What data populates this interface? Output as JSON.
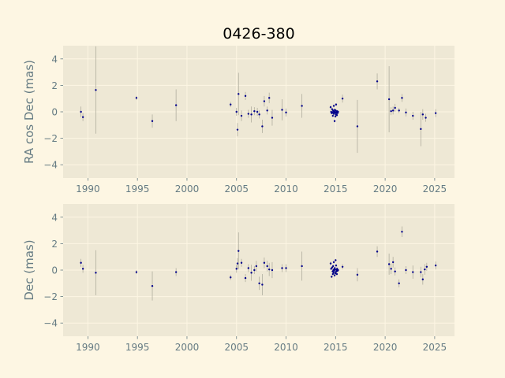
{
  "chart_data": {
    "type": "scatter",
    "title": "0426-380",
    "colors": {
      "figure_background": "#fdf6e3",
      "plot_background": "#eee8d5",
      "grid": "#fdf6e3",
      "marker": "#00008b",
      "errorbar": "#b0ad9e",
      "text": "#657b83"
    },
    "grid": true,
    "xlim": [
      1987.5,
      2027.0
    ],
    "xticks": [
      1990,
      1995,
      2000,
      2005,
      2010,
      2015,
      2020,
      2025
    ],
    "panels": [
      {
        "ylabel": "RA cos Dec (mas)",
        "ylim": [
          -5,
          5
        ],
        "yticks": [
          -4,
          -2,
          0,
          2,
          4
        ],
        "points": [
          {
            "x": 1989.3,
            "y": 0.0,
            "err": 0.4
          },
          {
            "x": 1989.5,
            "y": -0.4,
            "err": 0.3
          },
          {
            "x": 1990.8,
            "y": 1.65,
            "err": 3.3
          },
          {
            "x": 1994.9,
            "y": 1.05,
            "err": 0.15
          },
          {
            "x": 1996.5,
            "y": -0.7,
            "err": 0.5
          },
          {
            "x": 1998.9,
            "y": 0.5,
            "err": 1.2
          },
          {
            "x": 2004.4,
            "y": 0.55,
            "err": 0.2
          },
          {
            "x": 2005.0,
            "y": 0.0,
            "err": 0.3
          },
          {
            "x": 2005.1,
            "y": -1.35,
            "err": 0.5
          },
          {
            "x": 2005.2,
            "y": 1.35,
            "err": 1.6
          },
          {
            "x": 2005.5,
            "y": -0.3,
            "err": 0.4
          },
          {
            "x": 2005.9,
            "y": 1.2,
            "err": 0.3
          },
          {
            "x": 2006.2,
            "y": -0.15,
            "err": 0.3
          },
          {
            "x": 2006.5,
            "y": -0.2,
            "err": 0.6
          },
          {
            "x": 2006.8,
            "y": 0.05,
            "err": 0.3
          },
          {
            "x": 2007.1,
            "y": 0.0,
            "err": 0.3
          },
          {
            "x": 2007.3,
            "y": -0.2,
            "err": 0.3
          },
          {
            "x": 2007.6,
            "y": -1.1,
            "err": 0.5
          },
          {
            "x": 2007.8,
            "y": 0.8,
            "err": 0.4
          },
          {
            "x": 2008.1,
            "y": 0.1,
            "err": 0.3
          },
          {
            "x": 2008.3,
            "y": 1.05,
            "err": 0.4
          },
          {
            "x": 2008.6,
            "y": -0.45,
            "err": 0.6
          },
          {
            "x": 2009.6,
            "y": 0.15,
            "err": 0.8
          },
          {
            "x": 2010.0,
            "y": -0.05,
            "err": 0.3
          },
          {
            "x": 2011.6,
            "y": 0.45,
            "err": 0.9
          },
          {
            "x": 2014.5,
            "y": 0.35,
            "err": 0.15
          },
          {
            "x": 2014.55,
            "y": 0.0,
            "err": 0.1
          },
          {
            "x": 2014.6,
            "y": -0.1,
            "err": 0.1
          },
          {
            "x": 2014.65,
            "y": 0.2,
            "err": 0.1
          },
          {
            "x": 2014.7,
            "y": -0.05,
            "err": 0.1
          },
          {
            "x": 2014.72,
            "y": -0.3,
            "err": 0.1
          },
          {
            "x": 2014.75,
            "y": 0.1,
            "err": 0.1
          },
          {
            "x": 2014.78,
            "y": 0.05,
            "err": 0.1
          },
          {
            "x": 2014.8,
            "y": -0.15,
            "err": 0.1
          },
          {
            "x": 2014.82,
            "y": 0.45,
            "err": 0.1
          },
          {
            "x": 2014.85,
            "y": -0.1,
            "err": 0.1
          },
          {
            "x": 2014.88,
            "y": 0.0,
            "err": 0.1
          },
          {
            "x": 2014.9,
            "y": -0.7,
            "err": 0.1
          },
          {
            "x": 2014.92,
            "y": 0.15,
            "err": 0.1
          },
          {
            "x": 2014.95,
            "y": -0.05,
            "err": 0.1
          },
          {
            "x": 2014.98,
            "y": -0.35,
            "err": 0.1
          },
          {
            "x": 2015.0,
            "y": 0.1,
            "err": 0.1
          },
          {
            "x": 2015.02,
            "y": -0.2,
            "err": 0.1
          },
          {
            "x": 2015.05,
            "y": 0.55,
            "err": 0.1
          },
          {
            "x": 2015.08,
            "y": -0.1,
            "err": 0.1
          },
          {
            "x": 2015.1,
            "y": 0.0,
            "err": 0.1
          },
          {
            "x": 2015.13,
            "y": -0.25,
            "err": 0.1
          },
          {
            "x": 2015.15,
            "y": 0.05,
            "err": 0.1
          },
          {
            "x": 2015.2,
            "y": -0.1,
            "err": 0.1
          },
          {
            "x": 2015.25,
            "y": 0.0,
            "err": 0.1
          },
          {
            "x": 2015.7,
            "y": 1.0,
            "err": 0.3
          },
          {
            "x": 2017.2,
            "y": -1.1,
            "err": 2.0
          },
          {
            "x": 2019.2,
            "y": 2.3,
            "err": 0.6
          },
          {
            "x": 2020.4,
            "y": 0.95,
            "err": 2.5
          },
          {
            "x": 2020.6,
            "y": 0.05,
            "err": 0.3
          },
          {
            "x": 2020.8,
            "y": 0.1,
            "err": 0.3
          },
          {
            "x": 2021.0,
            "y": 0.3,
            "err": 0.3
          },
          {
            "x": 2021.4,
            "y": 0.1,
            "err": 0.2
          },
          {
            "x": 2021.7,
            "y": 1.05,
            "err": 0.3
          },
          {
            "x": 2022.1,
            "y": -0.05,
            "err": 0.3
          },
          {
            "x": 2022.8,
            "y": -0.3,
            "err": 0.3
          },
          {
            "x": 2023.6,
            "y": -1.3,
            "err": 1.3
          },
          {
            "x": 2023.8,
            "y": -0.2,
            "err": 0.4
          },
          {
            "x": 2024.1,
            "y": -0.45,
            "err": 0.3
          },
          {
            "x": 2025.1,
            "y": -0.1,
            "err": 0.3
          }
        ]
      },
      {
        "ylabel": "Dec (mas)",
        "ylim": [
          -5,
          5
        ],
        "yticks": [
          -4,
          -2,
          0,
          2,
          4
        ],
        "points": [
          {
            "x": 1989.3,
            "y": 0.55,
            "err": 0.3
          },
          {
            "x": 1989.5,
            "y": 0.1,
            "err": 0.3
          },
          {
            "x": 1990.8,
            "y": -0.2,
            "err": 1.7
          },
          {
            "x": 1994.9,
            "y": -0.15,
            "err": 0.15
          },
          {
            "x": 1996.5,
            "y": -1.2,
            "err": 1.1
          },
          {
            "x": 1998.9,
            "y": -0.15,
            "err": 0.3
          },
          {
            "x": 2004.4,
            "y": -0.55,
            "err": 0.2
          },
          {
            "x": 2005.0,
            "y": 0.1,
            "err": 0.3
          },
          {
            "x": 2005.1,
            "y": 0.5,
            "err": 0.4
          },
          {
            "x": 2005.2,
            "y": 1.45,
            "err": 1.4
          },
          {
            "x": 2005.5,
            "y": 0.55,
            "err": 0.3
          },
          {
            "x": 2005.9,
            "y": -0.6,
            "err": 0.3
          },
          {
            "x": 2006.2,
            "y": 0.15,
            "err": 0.3
          },
          {
            "x": 2006.5,
            "y": -0.2,
            "err": 0.6
          },
          {
            "x": 2006.8,
            "y": 0.0,
            "err": 0.3
          },
          {
            "x": 2007.0,
            "y": 0.3,
            "err": 0.4
          },
          {
            "x": 2007.3,
            "y": -1.0,
            "err": 0.5
          },
          {
            "x": 2007.6,
            "y": -1.1,
            "err": 0.8
          },
          {
            "x": 2007.8,
            "y": 0.55,
            "err": 0.4
          },
          {
            "x": 2008.1,
            "y": 0.3,
            "err": 0.4
          },
          {
            "x": 2008.3,
            "y": 0.05,
            "err": 0.5
          },
          {
            "x": 2008.6,
            "y": 0.0,
            "err": 0.6
          },
          {
            "x": 2009.6,
            "y": 0.15,
            "err": 0.3
          },
          {
            "x": 2010.0,
            "y": 0.15,
            "err": 0.3
          },
          {
            "x": 2011.6,
            "y": 0.3,
            "err": 1.1
          },
          {
            "x": 2014.5,
            "y": 0.5,
            "err": 0.15
          },
          {
            "x": 2014.55,
            "y": 0.1,
            "err": 0.1
          },
          {
            "x": 2014.6,
            "y": -0.5,
            "err": 0.1
          },
          {
            "x": 2014.65,
            "y": 0.2,
            "err": 0.1
          },
          {
            "x": 2014.7,
            "y": -0.1,
            "err": 0.1
          },
          {
            "x": 2014.72,
            "y": -0.3,
            "err": 0.1
          },
          {
            "x": 2014.75,
            "y": 0.3,
            "err": 0.1
          },
          {
            "x": 2014.78,
            "y": 0.0,
            "err": 0.1
          },
          {
            "x": 2014.8,
            "y": -0.2,
            "err": 0.1
          },
          {
            "x": 2014.82,
            "y": 0.6,
            "err": 0.1
          },
          {
            "x": 2014.85,
            "y": -0.05,
            "err": 0.1
          },
          {
            "x": 2014.88,
            "y": 0.1,
            "err": 0.1
          },
          {
            "x": 2014.9,
            "y": -0.4,
            "err": 0.1
          },
          {
            "x": 2014.92,
            "y": 0.15,
            "err": 0.1
          },
          {
            "x": 2014.95,
            "y": 0.05,
            "err": 0.1
          },
          {
            "x": 2014.98,
            "y": -0.25,
            "err": 0.1
          },
          {
            "x": 2015.0,
            "y": 0.75,
            "err": 0.1
          },
          {
            "x": 2015.02,
            "y": -0.15,
            "err": 0.1
          },
          {
            "x": 2015.05,
            "y": 0.35,
            "err": 0.1
          },
          {
            "x": 2015.08,
            "y": -0.1,
            "err": 0.1
          },
          {
            "x": 2015.1,
            "y": 0.0,
            "err": 0.1
          },
          {
            "x": 2015.13,
            "y": -0.3,
            "err": 0.1
          },
          {
            "x": 2015.15,
            "y": 0.1,
            "err": 0.1
          },
          {
            "x": 2015.2,
            "y": -0.05,
            "err": 0.1
          },
          {
            "x": 2015.25,
            "y": 0.0,
            "err": 0.1
          },
          {
            "x": 2015.7,
            "y": 0.25,
            "err": 0.2
          },
          {
            "x": 2017.2,
            "y": -0.35,
            "err": 0.5
          },
          {
            "x": 2019.2,
            "y": 1.4,
            "err": 0.4
          },
          {
            "x": 2020.4,
            "y": 0.45,
            "err": 0.8
          },
          {
            "x": 2020.6,
            "y": 0.1,
            "err": 0.4
          },
          {
            "x": 2020.8,
            "y": 0.6,
            "err": 0.4
          },
          {
            "x": 2021.0,
            "y": -0.1,
            "err": 0.3
          },
          {
            "x": 2021.4,
            "y": -1.0,
            "err": 0.3
          },
          {
            "x": 2021.7,
            "y": 2.9,
            "err": 0.4
          },
          {
            "x": 2022.1,
            "y": 0.0,
            "err": 0.3
          },
          {
            "x": 2022.8,
            "y": -0.15,
            "err": 0.5
          },
          {
            "x": 2023.6,
            "y": -0.15,
            "err": 0.4
          },
          {
            "x": 2023.8,
            "y": -0.7,
            "err": 0.4
          },
          {
            "x": 2024.0,
            "y": 0.05,
            "err": 0.4
          },
          {
            "x": 2024.2,
            "y": 0.25,
            "err": 0.3
          },
          {
            "x": 2025.1,
            "y": 0.35,
            "err": 0.3
          }
        ]
      }
    ]
  }
}
